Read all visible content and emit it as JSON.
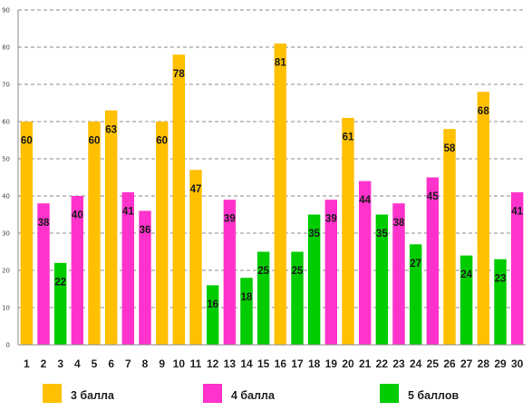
{
  "chart_data": {
    "type": "bar",
    "categories": [
      "1",
      "2",
      "3",
      "4",
      "5",
      "6",
      "7",
      "8",
      "9",
      "10",
      "11",
      "12",
      "13",
      "14",
      "15",
      "16",
      "17",
      "18",
      "19",
      "20",
      "21",
      "22",
      "23",
      "24",
      "25",
      "26",
      "27",
      "28",
      "29",
      "30"
    ],
    "values": [
      60,
      38,
      22,
      40,
      60,
      63,
      41,
      36,
      60,
      78,
      47,
      16,
      39,
      18,
      25,
      81,
      25,
      35,
      39,
      61,
      44,
      35,
      38,
      27,
      45,
      58,
      24,
      68,
      23,
      41
    ],
    "groups": [
      "3",
      "4",
      "5",
      "4",
      "3",
      "3",
      "4",
      "4",
      "3",
      "3",
      "3",
      "5",
      "4",
      "5",
      "5",
      "3",
      "5",
      "5",
      "4",
      "3",
      "4",
      "5",
      "4",
      "5",
      "4",
      "3",
      "5",
      "3",
      "5",
      "4"
    ],
    "legend": [
      {
        "key": "3",
        "name": "3 балла",
        "color": "#FFC000"
      },
      {
        "key": "4",
        "name": "4 балла",
        "color": "#FF33CC"
      },
      {
        "key": "5",
        "name": "5 баллов",
        "color": "#00CC00"
      }
    ],
    "ylim": [
      0,
      90
    ],
    "yticks": [
      0,
      10,
      20,
      30,
      40,
      50,
      60,
      70,
      80,
      90
    ],
    "grid": "horizontal-dashed",
    "legend_position": "bottom"
  }
}
